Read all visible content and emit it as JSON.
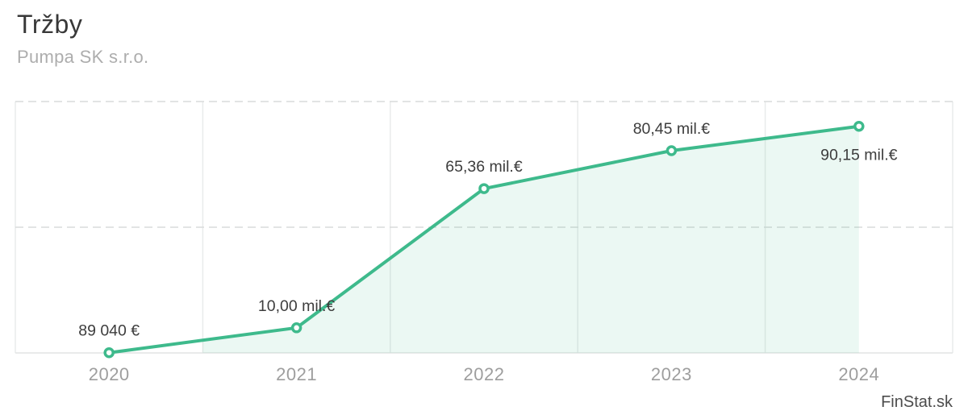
{
  "header": {
    "title": "Tržby",
    "subtitle": "Pumpa SK s.r.o."
  },
  "watermark": "FinStat.sk",
  "chart_data": {
    "type": "line",
    "title": "Tržby",
    "categories": [
      "2020",
      "2021",
      "2022",
      "2023",
      "2024"
    ],
    "series": [
      {
        "name": "Tržby",
        "unit": "mil. €",
        "values": [
          0.08904,
          10.0,
          65.36,
          80.45,
          90.15
        ]
      }
    ],
    "point_labels": [
      "89 040 €",
      "10,00 mil.€",
      "65,36 mil.€",
      "80,45 mil.€",
      "90,15 mil.€"
    ],
    "label_placement": [
      "above",
      "above",
      "above",
      "above",
      "below"
    ],
    "xlabel": "",
    "ylabel": "",
    "ylim": [
      0,
      100
    ],
    "grid_values": [
      0,
      50,
      100
    ],
    "grid": true,
    "legend_position": "none",
    "fill_from_band": 1,
    "colors": {
      "line": "#3eba8c",
      "area_fill": "rgba(62, 186, 140, 0.10)",
      "marker_fill": "#ffffff",
      "vertical_grid": "#e9ebeb",
      "dashed_grid": "#d9dbdb",
      "baseline": "#e2e4e4",
      "point_label": "#3d3d3d",
      "axis_label": "#9e9e9e"
    }
  }
}
